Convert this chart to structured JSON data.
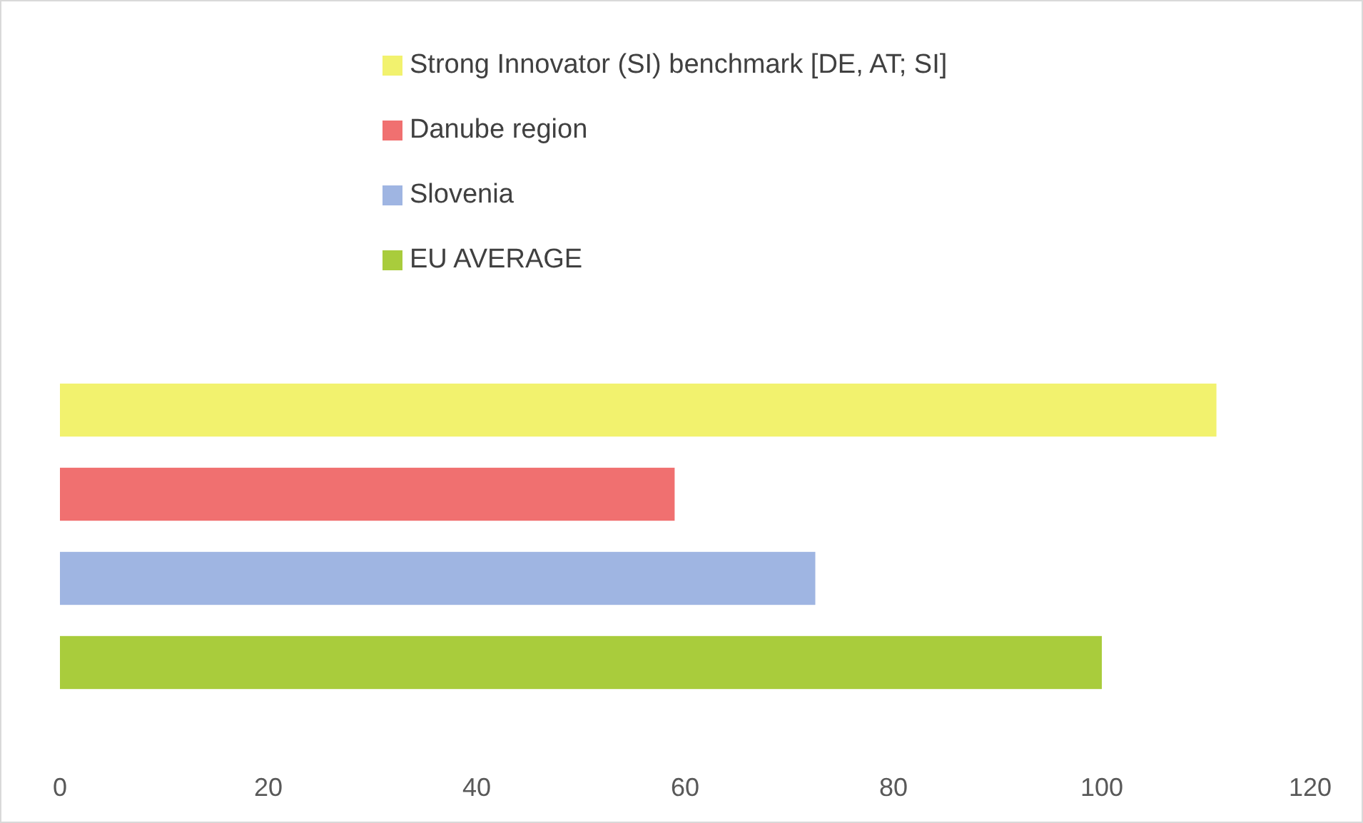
{
  "chart_data": {
    "type": "bar",
    "orientation": "horizontal",
    "stacked": true,
    "categories": [
      null,
      null,
      null,
      null
    ],
    "series": [
      {
        "name": "Strong Innovator (SI) benchmark [DE, AT; SI]",
        "color": "#f2f26e",
        "values": [
          111,
          null,
          null,
          null
        ]
      },
      {
        "name": "Danube region",
        "color": "#f07070",
        "values": [
          null,
          59,
          null,
          null
        ]
      },
      {
        "name": "Slovenia",
        "color": "#9fb5e2",
        "values": [
          null,
          null,
          72.5,
          null
        ]
      },
      {
        "name": "EU AVERAGE",
        "color": "#a9cc3c",
        "values": [
          null,
          null,
          null,
          100
        ]
      }
    ],
    "xlim": [
      0,
      120
    ],
    "xticks": [
      0,
      20,
      40,
      60,
      80,
      100,
      120
    ],
    "grid": false,
    "legend": "top"
  }
}
